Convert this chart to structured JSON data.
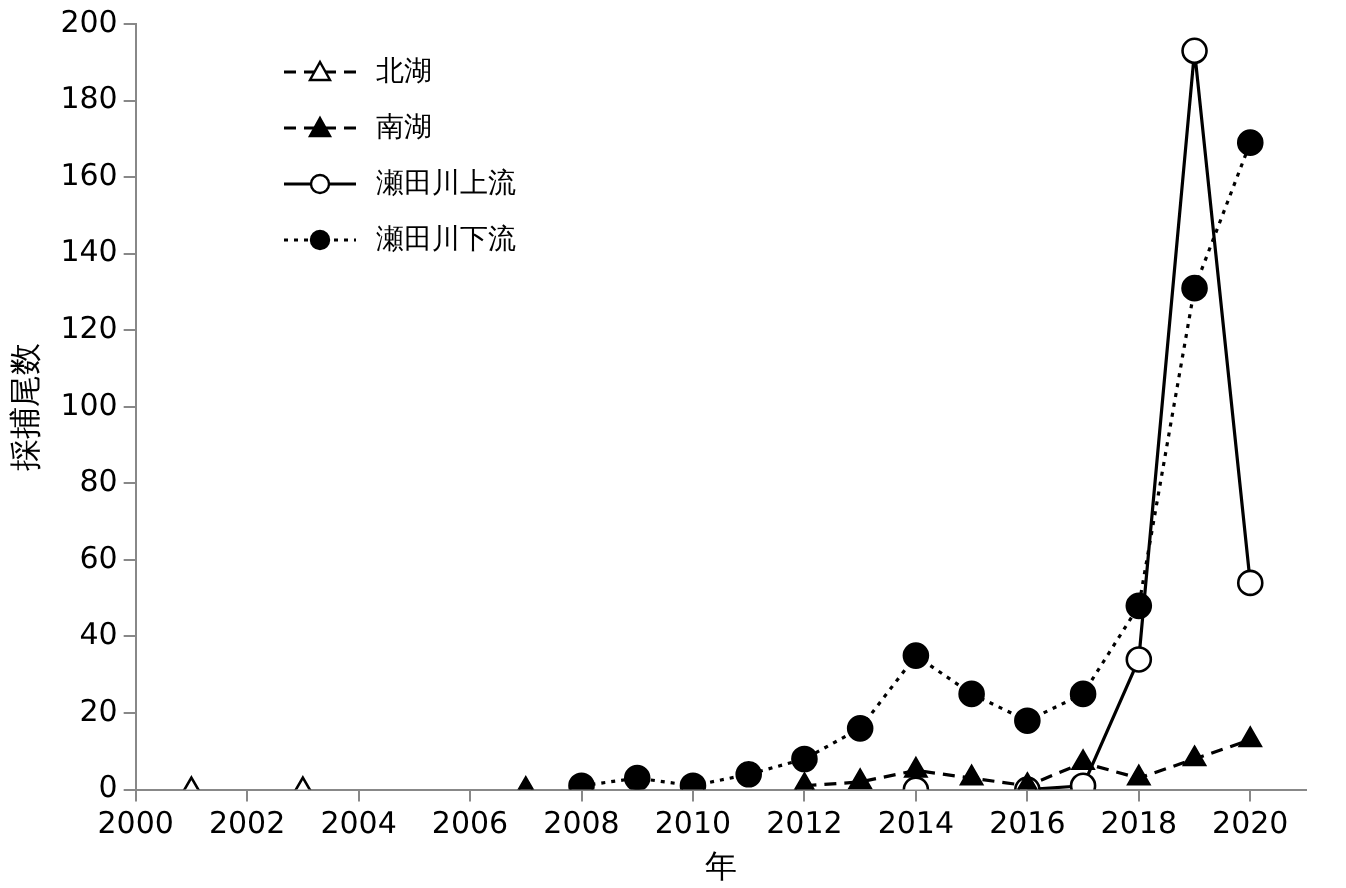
{
  "chart_data": {
    "type": "line",
    "xlabel": "年",
    "ylabel": "採捕尾数",
    "xlim": [
      2000,
      2021
    ],
    "xticks": [
      2000,
      2002,
      2004,
      2006,
      2008,
      2010,
      2012,
      2014,
      2016,
      2018,
      2020
    ],
    "ylim": [
      0,
      200
    ],
    "yticks": [
      0,
      20,
      40,
      60,
      80,
      100,
      120,
      140,
      160,
      180,
      200
    ],
    "grid": false,
    "legend": "top left",
    "series": [
      {
        "name": "北湖",
        "color": "#000000",
        "colors": [
          "#ffffff",
          "#ffffff",
          "#ffffff"
        ],
        "marker": "triangle",
        "line_style": "dashed",
        "x": [
          2001,
          2002,
          2003
        ],
        "values": [
          0,
          null,
          0
        ]
      },
      {
        "name": "南湖",
        "color": "#000000",
        "colors": [
          "#000000",
          "#000000",
          "#000000",
          "#000000",
          "#000000",
          "#000000",
          "#000000",
          "#000000",
          "#000000",
          "#000000",
          "#000000"
        ],
        "marker": "triangle",
        "line_style": "dashed",
        "x": [
          2007,
          2008,
          2012,
          2013,
          2014,
          2015,
          2016,
          2017,
          2018,
          2019,
          2020
        ],
        "values": [
          0,
          null,
          1,
          2,
          5,
          3,
          1,
          7,
          3,
          8,
          13
        ]
      },
      {
        "name": "瀬田川上流",
        "color": "#000000",
        "colors": [
          "#ffffff",
          "#ffffff",
          "#ffffff",
          "#ffffff",
          "#ffffff",
          "#ffffff",
          "#ffffff"
        ],
        "marker": "circle",
        "line_style": "solid",
        "x": [
          2014,
          2015,
          2016,
          2017,
          2018,
          2019,
          2020
        ],
        "values": [
          0,
          null,
          0,
          1,
          34,
          193,
          54
        ]
      },
      {
        "name": "瀬田川下流",
        "color": "#000000",
        "colors": [
          "#000000",
          "#000000",
          "#000000",
          "#000000",
          "#000000",
          "#000000",
          "#000000",
          "#000000",
          "#000000",
          "#000000",
          "#000000",
          "#000000",
          "#000000"
        ],
        "marker": "circle",
        "line_style": "dotted",
        "x": [
          2008,
          2009,
          2010,
          2011,
          2012,
          2013,
          2014,
          2015,
          2016,
          2017,
          2018,
          2019,
          2020
        ],
        "values": [
          1,
          3,
          1,
          4,
          8,
          16,
          35,
          25,
          18,
          25,
          48,
          131,
          169
        ]
      }
    ]
  }
}
